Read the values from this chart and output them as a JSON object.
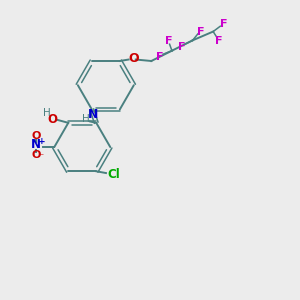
{
  "background_color": "#ececec",
  "bond_color": "#4a8080",
  "atom_colors": {
    "N": "#0000cc",
    "O": "#cc0000",
    "Cl": "#00aa00",
    "F": "#cc00cc",
    "H": "#4a8080"
  },
  "figsize": [
    3.0,
    3.0
  ],
  "dpi": 100
}
